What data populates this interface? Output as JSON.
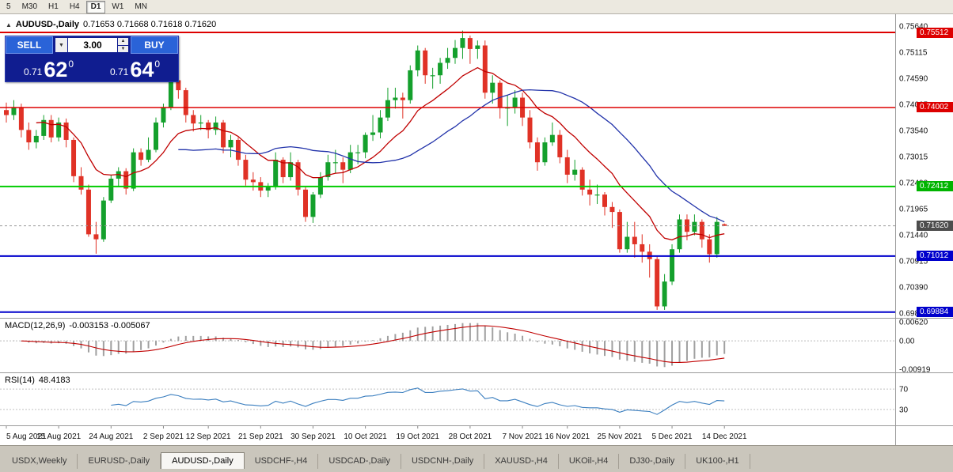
{
  "toolbar": {
    "periods": [
      {
        "label": "5",
        "active": false
      },
      {
        "label": "M30",
        "active": false
      },
      {
        "label": "H1",
        "active": false
      },
      {
        "label": "H4",
        "active": false
      },
      {
        "label": "D1",
        "active": true
      },
      {
        "label": "W1",
        "active": false
      },
      {
        "label": "MN",
        "active": false
      }
    ]
  },
  "header": {
    "collapse_icon": "▲",
    "symbol": "AUDUSD-,Daily",
    "ohlc": "0.71653 0.71668 0.71618 0.71620"
  },
  "trade_panel": {
    "sell_label": "SELL",
    "buy_label": "BUY",
    "lot_value": "3.00",
    "dropdown_icon": "▼",
    "step_up_icon": "▲",
    "step_down_icon": "▼",
    "sell_price": {
      "small": "0.71",
      "big": "62",
      "sup": "0"
    },
    "buy_price": {
      "small": "0.71",
      "big": "64",
      "sup": "0"
    }
  },
  "price_axis": {
    "labels": [
      "0.75640",
      "0.75115",
      "0.74590",
      "0.74065",
      "0.73540",
      "0.73015",
      "0.72490",
      "0.71965",
      "0.71440",
      "0.70915",
      "0.70390",
      "0.69865"
    ]
  },
  "levels": [
    {
      "label": "0.75512",
      "price": 0.75512,
      "color": "#dd0000",
      "width": 2,
      "line": true
    },
    {
      "label": "0.74002",
      "price": 0.74002,
      "color": "#dd0000",
      "width": 1.5,
      "line": true
    },
    {
      "label": "0.72412",
      "price": 0.72412,
      "color": "#00cc00",
      "width": 2,
      "line": true,
      "badge": "#00b400"
    },
    {
      "label": "0.71620",
      "price": 0.7162,
      "color": "#4d4d4d",
      "width": 1,
      "line": false,
      "current": true
    },
    {
      "label": "0.71012",
      "price": 0.71012,
      "color": "#0000cc",
      "width": 2,
      "line": true
    },
    {
      "label": "0.69884",
      "price": 0.69884,
      "color": "#0000cc",
      "width": 2,
      "line": true
    }
  ],
  "macd_panel": {
    "title": "MACD(12,26,9)",
    "values": "-0.003153 -0.005067",
    "axis_labels": [
      "0.00620",
      "0.00",
      "-0.00919"
    ]
  },
  "rsi_panel": {
    "title": "RSI(14)",
    "value": "48.4183",
    "axis_labels": [
      "70",
      "30"
    ]
  },
  "timeline": {
    "dates": [
      "5 Aug 2021",
      "15 Aug 2021",
      "24 Aug 2021",
      "2 Sep 2021",
      "12 Sep 2021",
      "21 Sep 2021",
      "30 Sep 2021",
      "10 Oct 2021",
      "19 Oct 2021",
      "28 Oct 2021",
      "7 Nov 2021",
      "16 Nov 2021",
      "25 Nov 2021",
      "5 Dec 2021",
      "14 Dec 2021"
    ]
  },
  "tabs": [
    {
      "label": "USDX,Weekly",
      "active": false
    },
    {
      "label": "EURUSD-,Daily",
      "active": false
    },
    {
      "label": "AUDUSD-,Daily",
      "active": true
    },
    {
      "label": "USDCHF-,H4",
      "active": false
    },
    {
      "label": "USDCAD-,Daily",
      "active": false
    },
    {
      "label": "USDCNH-,Daily",
      "active": false
    },
    {
      "label": "XAUUSD-,H4",
      "active": false
    },
    {
      "label": "UKOil-,H4",
      "active": false
    },
    {
      "label": "DJ30-,Daily",
      "active": false
    },
    {
      "label": "UK100-,H1",
      "active": false
    }
  ],
  "colors": {
    "bull": "#14a02c",
    "bear": "#e03226",
    "ma_fast": "#c00000",
    "ma_slow": "#2233aa",
    "rsi": "#3a7ebf",
    "macd_hist": "#a0a0a0",
    "macd_signal": "#c00000",
    "panel_navy": "#101d90",
    "button_blue": "#2a63d8",
    "level_red": "#dd0000",
    "level_green": "#00cc00",
    "level_blue": "#0000cc"
  },
  "chart_data": {
    "type": "candlestick",
    "symbol": "AUDUSD",
    "timeframe": "Daily",
    "title": "AUDUSD-,Daily",
    "y_axis_ticks": [
      "0.75640",
      "0.75115",
      "0.74590",
      "0.74065",
      "0.73540",
      "0.73015",
      "0.72490",
      "0.71965",
      "0.71440",
      "0.70915",
      "0.70390",
      "0.69865"
    ],
    "x_labels": [
      "5 Aug 2021",
      "15 Aug 2021",
      "24 Aug 2021",
      "2 Sep 2021",
      "12 Sep 2021",
      "21 Sep 2021",
      "30 Sep 2021",
      "10 Oct 2021",
      "19 Oct 2021",
      "28 Oct 2021",
      "7 Nov 2021",
      "16 Nov 2021",
      "25 Nov 2021",
      "5 Dec 2021",
      "14 Dec 2021"
    ],
    "horizontal_levels": [
      0.75512,
      0.74002,
      0.72412,
      0.71012,
      0.69884
    ],
    "current_price": 0.7162,
    "overlays": [
      {
        "name": "ma-fast",
        "type": "ema",
        "period": 12,
        "color": "#c00000"
      },
      {
        "name": "ma-slow",
        "type": "sma",
        "period": 24,
        "color": "#2233aa"
      }
    ],
    "indicators": [
      {
        "name": "MACD",
        "params": "12,26,9",
        "values": [
          -0.003153,
          -0.005067
        ]
      },
      {
        "name": "RSI",
        "params": "14",
        "value": 48.4183
      }
    ],
    "ohlc": [
      [
        0.7395,
        0.741,
        0.737,
        0.7385
      ],
      [
        0.7385,
        0.7415,
        0.7375,
        0.74
      ],
      [
        0.74,
        0.7408,
        0.734,
        0.7355
      ],
      [
        0.7355,
        0.737,
        0.7315,
        0.733
      ],
      [
        0.733,
        0.7355,
        0.7318,
        0.7343
      ],
      [
        0.7343,
        0.7385,
        0.7335,
        0.7375
      ],
      [
        0.7375,
        0.7385,
        0.733,
        0.734
      ],
      [
        0.734,
        0.738,
        0.7332,
        0.737
      ],
      [
        0.737,
        0.7378,
        0.732,
        0.7335
      ],
      [
        0.7335,
        0.734,
        0.725,
        0.7262
      ],
      [
        0.7262,
        0.728,
        0.7225,
        0.7235
      ],
      [
        0.7235,
        0.7245,
        0.714,
        0.7145
      ],
      [
        0.7145,
        0.717,
        0.7106,
        0.7135
      ],
      [
        0.7135,
        0.722,
        0.713,
        0.7213
      ],
      [
        0.7213,
        0.7265,
        0.7208,
        0.7257
      ],
      [
        0.7257,
        0.728,
        0.724,
        0.7272
      ],
      [
        0.7272,
        0.7278,
        0.7225,
        0.7237
      ],
      [
        0.7237,
        0.7318,
        0.7232,
        0.731
      ],
      [
        0.731,
        0.7318,
        0.7283,
        0.7295
      ],
      [
        0.7295,
        0.734,
        0.729,
        0.7315
      ],
      [
        0.7315,
        0.738,
        0.731,
        0.737
      ],
      [
        0.737,
        0.7408,
        0.736,
        0.74
      ],
      [
        0.74,
        0.7478,
        0.7395,
        0.7455
      ],
      [
        0.7455,
        0.7468,
        0.7418,
        0.7435
      ],
      [
        0.7435,
        0.744,
        0.737,
        0.7385
      ],
      [
        0.7385,
        0.7395,
        0.7352,
        0.7368
      ],
      [
        0.7368,
        0.7385,
        0.7355,
        0.737
      ],
      [
        0.737,
        0.7375,
        0.7338,
        0.7355
      ],
      [
        0.7355,
        0.7382,
        0.7345,
        0.737
      ],
      [
        0.737,
        0.7375,
        0.7308,
        0.732
      ],
      [
        0.732,
        0.7345,
        0.73,
        0.7335
      ],
      [
        0.7335,
        0.734,
        0.7283,
        0.7295
      ],
      [
        0.7295,
        0.7305,
        0.7243,
        0.7255
      ],
      [
        0.7255,
        0.727,
        0.7233,
        0.725
      ],
      [
        0.725,
        0.726,
        0.722,
        0.7233
      ],
      [
        0.7233,
        0.7248,
        0.722,
        0.724
      ],
      [
        0.724,
        0.731,
        0.7235,
        0.7295
      ],
      [
        0.7295,
        0.73,
        0.7248,
        0.726
      ],
      [
        0.726,
        0.731,
        0.7253,
        0.729
      ],
      [
        0.729,
        0.7295,
        0.7223,
        0.7235
      ],
      [
        0.7235,
        0.724,
        0.717,
        0.718
      ],
      [
        0.718,
        0.723,
        0.7168,
        0.7225
      ],
      [
        0.7225,
        0.727,
        0.7218,
        0.726
      ],
      [
        0.726,
        0.7305,
        0.7253,
        0.729
      ],
      [
        0.729,
        0.7315,
        0.7268,
        0.729
      ],
      [
        0.729,
        0.73,
        0.7248,
        0.7275
      ],
      [
        0.7275,
        0.7325,
        0.7268,
        0.731
      ],
      [
        0.731,
        0.7325,
        0.7286,
        0.731
      ],
      [
        0.731,
        0.735,
        0.7298,
        0.7345
      ],
      [
        0.7345,
        0.7385,
        0.7333,
        0.735
      ],
      [
        0.735,
        0.7395,
        0.7338,
        0.738
      ],
      [
        0.738,
        0.744,
        0.7373,
        0.7415
      ],
      [
        0.7415,
        0.744,
        0.7398,
        0.742
      ],
      [
        0.742,
        0.743,
        0.7378,
        0.7415
      ],
      [
        0.7415,
        0.7485,
        0.7408,
        0.7475
      ],
      [
        0.7475,
        0.7525,
        0.7463,
        0.7515
      ],
      [
        0.7515,
        0.752,
        0.7448,
        0.7465
      ],
      [
        0.7465,
        0.748,
        0.7438,
        0.7465
      ],
      [
        0.7465,
        0.75,
        0.7448,
        0.749
      ],
      [
        0.749,
        0.752,
        0.7478,
        0.75
      ],
      [
        0.75,
        0.7536,
        0.7488,
        0.752
      ],
      [
        0.752,
        0.7555,
        0.7498,
        0.754
      ],
      [
        0.754,
        0.7545,
        0.7488,
        0.7518
      ],
      [
        0.7518,
        0.7535,
        0.7498,
        0.7525
      ],
      [
        0.7525,
        0.7535,
        0.7418,
        0.743
      ],
      [
        0.743,
        0.7465,
        0.7408,
        0.745
      ],
      [
        0.745,
        0.7455,
        0.7378,
        0.74
      ],
      [
        0.74,
        0.7425,
        0.7363,
        0.74
      ],
      [
        0.74,
        0.7435,
        0.7388,
        0.742
      ],
      [
        0.742,
        0.743,
        0.7363,
        0.738
      ],
      [
        0.738,
        0.7395,
        0.7318,
        0.733
      ],
      [
        0.733,
        0.734,
        0.7273,
        0.729
      ],
      [
        0.729,
        0.734,
        0.7283,
        0.733
      ],
      [
        0.733,
        0.737,
        0.7323,
        0.7345
      ],
      [
        0.7345,
        0.7355,
        0.7288,
        0.73
      ],
      [
        0.73,
        0.7315,
        0.7248,
        0.7265
      ],
      [
        0.7265,
        0.7295,
        0.7253,
        0.7275
      ],
      [
        0.7275,
        0.728,
        0.7223,
        0.7235
      ],
      [
        0.7235,
        0.7255,
        0.7203,
        0.7225
      ],
      [
        0.7225,
        0.7245,
        0.7206,
        0.7225
      ],
      [
        0.7225,
        0.723,
        0.7183,
        0.72
      ],
      [
        0.72,
        0.721,
        0.7158,
        0.719
      ],
      [
        0.719,
        0.7195,
        0.7108,
        0.7115
      ],
      [
        0.7115,
        0.717,
        0.7108,
        0.714
      ],
      [
        0.714,
        0.717,
        0.7098,
        0.7125
      ],
      [
        0.7125,
        0.7145,
        0.7088,
        0.711
      ],
      [
        0.711,
        0.7125,
        0.7058,
        0.7095
      ],
      [
        0.7095,
        0.71,
        0.6993,
        0.7
      ],
      [
        0.7,
        0.7065,
        0.6993,
        0.705
      ],
      [
        0.705,
        0.7125,
        0.7043,
        0.7115
      ],
      [
        0.7115,
        0.7185,
        0.7108,
        0.7175
      ],
      [
        0.7175,
        0.7185,
        0.7133,
        0.715
      ],
      [
        0.715,
        0.7185,
        0.7143,
        0.717
      ],
      [
        0.717,
        0.7175,
        0.7118,
        0.7135
      ],
      [
        0.7135,
        0.7145,
        0.7088,
        0.7105
      ],
      [
        0.7105,
        0.718,
        0.7098,
        0.717
      ],
      [
        0.71653,
        0.71668,
        0.71618,
        0.7162
      ]
    ]
  }
}
